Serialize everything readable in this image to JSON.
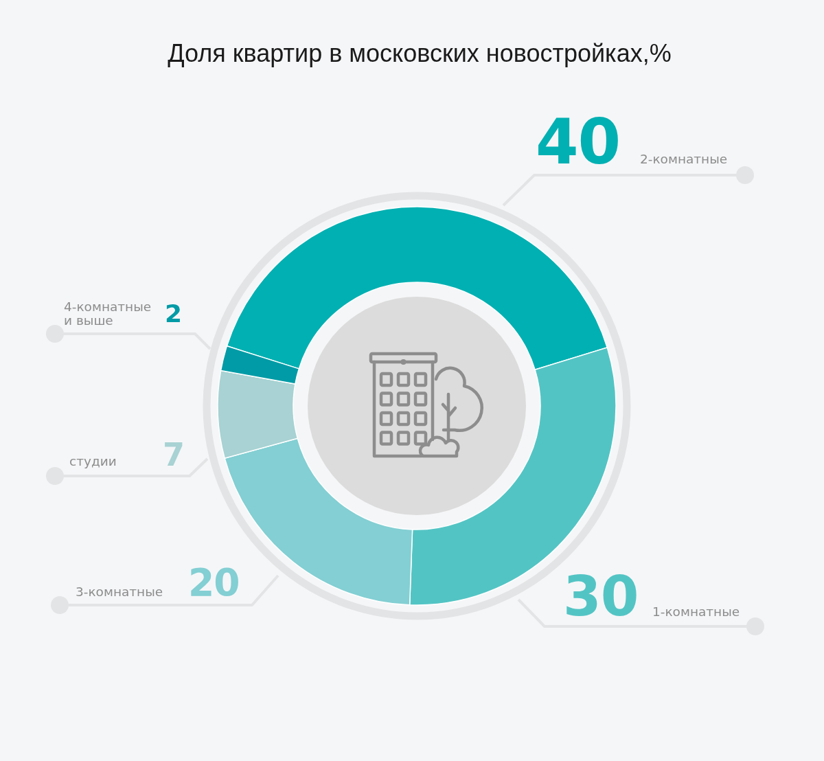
{
  "chart_data": {
    "type": "donut",
    "title": "Доля квартир в московских новостройках,%",
    "categories": [
      "2-комнатные",
      "1-комнатные",
      "3-комнатные",
      "студии",
      "4-комнатные и выше"
    ],
    "values": [
      40,
      30,
      20,
      7,
      2
    ],
    "colors": [
      "#00b0b2",
      "#53c4c4",
      "#83cfd3",
      "#a8d2d3",
      "#009ba6"
    ],
    "data_labels": true
  }
}
